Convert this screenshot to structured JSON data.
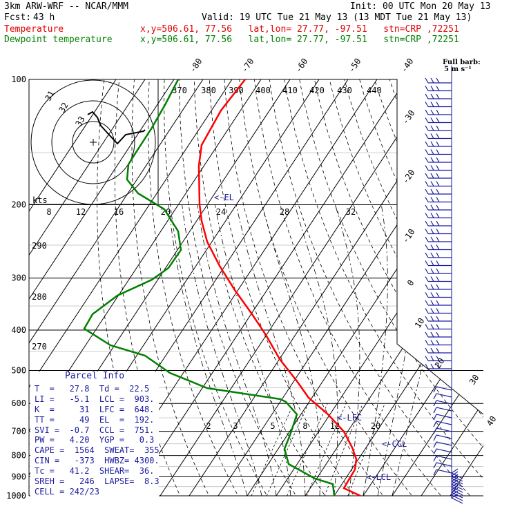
{
  "header": {
    "model": "3km ARW-WRF -- NCAR/MMM",
    "init": "Init: 00 UTC Mon 20 May 13",
    "fcst_label": "Fcst:",
    "fcst_value": "43 h",
    "valid": "Valid: 19 UTC Tue 21 May 13 (13 MDT Tue 21 May 13)",
    "temp_label": "Temperature",
    "temp_loc": "x,y=506.61, 77.56   lat,lon= 27.77, -97.51   stn=CRP ,72251",
    "dew_label": "Dewpoint temperature",
    "dew_loc": "x,y=506.61, 77.56   lat,lon= 27.77, -97.51   stn=CRP ,72251",
    "barb_title": "Full barb:",
    "barb_unit": "5 m s⁻¹",
    "temp_color": "#ff0000",
    "dew_color": "#008000"
  },
  "chart_data": {
    "type": "line",
    "chart_kind": "skew-T log-p sounding",
    "pressure_ticks": [
      "100",
      "200",
      "300",
      "400",
      "500",
      "600",
      "700",
      "800",
      "900",
      "1000"
    ],
    "skew_temp_labels": [
      "-80",
      "-70",
      "-60",
      "-50",
      "-40",
      "-30",
      "-20",
      "-10",
      "0",
      "10",
      "20",
      "30",
      "40"
    ],
    "theta_labels": [
      "370",
      "380",
      "390",
      "400",
      "410",
      "420",
      "430",
      "440",
      "290",
      "280",
      "270"
    ],
    "mixing_ratio_labels": [
      "2",
      "3",
      "5",
      "8",
      "12",
      "20"
    ],
    "hodograph": {
      "unit_label": "kts",
      "ring_labels": [
        "8",
        "12",
        "16",
        "20",
        "24",
        "28",
        "32"
      ],
      "rotated_labels": [
        "31",
        "32",
        "33"
      ]
    },
    "levels": {
      "lfc": "<-LFC",
      "ccl": "<-CCL",
      "lcl": "<-LCL",
      "el": "<-EL"
    },
    "series": [
      {
        "name": "Temperature",
        "points": [
          [
            100,
            -70
          ],
          [
            150,
            -57
          ],
          [
            200,
            -48
          ],
          [
            250,
            -39
          ],
          [
            300,
            -30
          ],
          [
            350,
            -24
          ],
          [
            400,
            -18
          ],
          [
            450,
            -13
          ],
          [
            500,
            -9
          ],
          [
            550,
            -4
          ],
          [
            600,
            1
          ],
          [
            650,
            5
          ],
          [
            700,
            9
          ],
          [
            750,
            13
          ],
          [
            800,
            16
          ],
          [
            850,
            18
          ],
          [
            900,
            19
          ],
          [
            950,
            20
          ],
          [
            1000,
            27.8
          ]
        ]
      },
      {
        "name": "Dewpoint temperature",
        "points": [
          [
            100,
            -78
          ],
          [
            150,
            -72
          ],
          [
            170,
            -75
          ],
          [
            200,
            -68
          ],
          [
            250,
            -62
          ],
          [
            300,
            -64
          ],
          [
            350,
            -70
          ],
          [
            400,
            -76
          ],
          [
            450,
            -58
          ],
          [
            500,
            -44
          ],
          [
            550,
            -30
          ],
          [
            600,
            -2
          ],
          [
            650,
            3
          ],
          [
            700,
            5
          ],
          [
            750,
            5
          ],
          [
            800,
            7
          ],
          [
            850,
            10
          ],
          [
            900,
            16
          ],
          [
            950,
            20
          ],
          [
            1000,
            22.5
          ]
        ]
      }
    ]
  },
  "parcel_info": {
    "title": "Parcel Info",
    "rows": [
      "T  =   27.8  Td =  22.5",
      "LI =   -5.1  LCL =  903.",
      "K  =     31  LFC =  648.",
      "TT =     49  EL  =  192.",
      "SVI =  -0.7  CCL =  751.",
      "PW =   4.20  YGP =   0.3",
      "CAPE =  1564  SWEAT=  355",
      "CIN =   -373  HWBZ= 4300.",
      "Tc =   41.2  SHEAR=  36.",
      "SREH =   246  LAPSE=  8.3",
      "CELL = 242/23"
    ]
  }
}
